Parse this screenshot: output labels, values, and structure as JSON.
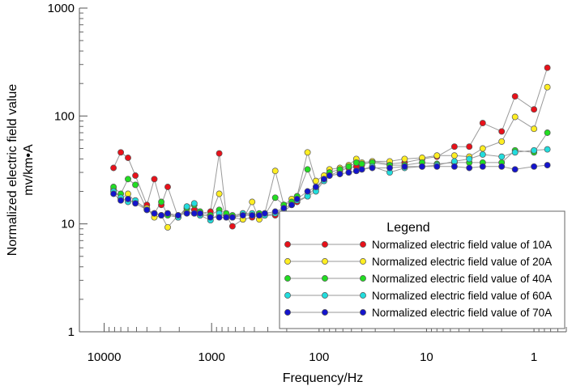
{
  "chart_data": {
    "type": "line",
    "xscale": "log",
    "yscale": "log",
    "x_reversed": true,
    "xlim": [
      17000,
      0.5
    ],
    "ylim": [
      1,
      1000
    ],
    "xlabel": "Frequency/Hz",
    "ylabel_line1": "Normalized electric field value",
    "ylabel_line2": "mv/km•A",
    "x_ticks": [
      {
        "value": 10000,
        "label": "10000"
      },
      {
        "value": 1000,
        "label": "1000"
      },
      {
        "value": 100,
        "label": "100"
      },
      {
        "value": 10,
        "label": "10"
      },
      {
        "value": 1,
        "label": "1"
      }
    ],
    "y_ticks": [
      {
        "value": 1,
        "label": "1"
      },
      {
        "value": 10,
        "label": "10"
      },
      {
        "value": 100,
        "label": "100"
      },
      {
        "value": 1000,
        "label": "1000"
      }
    ],
    "x": [
      8192,
      7000,
      6000,
      5120,
      4000,
      3413,
      2940,
      2560,
      2048,
      1700,
      1450,
      1280,
      1024,
      850,
      730,
      640,
      512,
      420,
      360,
      320,
      256,
      213,
      180,
      160,
      128,
      107,
      90,
      80,
      64,
      53,
      45,
      40,
      32,
      22,
      16,
      11,
      8,
      5.5,
      4,
      3,
      2,
      1.5,
      1,
      0.75
    ],
    "series": [
      {
        "name": "Normalized electric field value of 10A",
        "color": "#e8111a",
        "values": [
          33,
          46,
          41,
          28,
          15,
          26,
          15,
          22,
          11.5,
          14,
          13.5,
          12.5,
          13,
          45,
          12,
          9.5,
          11,
          11.5,
          12,
          12,
          12,
          13,
          15,
          16,
          18,
          22,
          25,
          28,
          31,
          33,
          34,
          35,
          38,
          36,
          37,
          40,
          42,
          52,
          52,
          86,
          72,
          152,
          115,
          280
        ]
      },
      {
        "name": "Normalized electric field value of 20A",
        "color": "#ffee22",
        "values": [
          21,
          17,
          19,
          16,
          14,
          11.5,
          12,
          9.3,
          12,
          13,
          12.5,
          12,
          12,
          19,
          11.5,
          11.5,
          11,
          16,
          11,
          12.5,
          31,
          15,
          17,
          18,
          46,
          25,
          28,
          32,
          33,
          35,
          40,
          37,
          38,
          38,
          40,
          41,
          43,
          43,
          42,
          50,
          58,
          98,
          76,
          185
        ]
      },
      {
        "name": "Normalized electric field value of 40A",
        "color": "#22dd22",
        "values": [
          22,
          19,
          26,
          23,
          13.5,
          12.5,
          16,
          12,
          11.5,
          14,
          15,
          13,
          12,
          13.5,
          12.5,
          12,
          12.5,
          12,
          12.5,
          12,
          17.5,
          15,
          16,
          18,
          32,
          21,
          26,
          30,
          32,
          34,
          37,
          36,
          37,
          35,
          35,
          37,
          36,
          37,
          37,
          37,
          37,
          48,
          46,
          70
        ]
      },
      {
        "name": "Normalized electric field value of 60A",
        "color": "#22dddd",
        "values": [
          20,
          17.5,
          16,
          16.5,
          13.5,
          12.5,
          12,
          12.5,
          11.5,
          14.5,
          15.5,
          12,
          10.8,
          12.5,
          11.5,
          11.5,
          12.5,
          12.5,
          12,
          12,
          12.5,
          13,
          15,
          16.5,
          18,
          20,
          25,
          28,
          29,
          30,
          31,
          32,
          34,
          30,
          33,
          34,
          35,
          38,
          40,
          44,
          42,
          46,
          48,
          49
        ]
      },
      {
        "name": "Normalized electric field value of 70A",
        "color": "#1414cc",
        "values": [
          19,
          16.5,
          17,
          15.5,
          13.5,
          12.5,
          12,
          12.5,
          12,
          12.5,
          12.5,
          12.5,
          11.5,
          11.5,
          11.5,
          11.5,
          12,
          12,
          12,
          12.5,
          13,
          14,
          15,
          17,
          20,
          22,
          26,
          28,
          29,
          30,
          31,
          32,
          33,
          33,
          34,
          34,
          34,
          34,
          33,
          34,
          34,
          32,
          34,
          35
        ]
      }
    ],
    "legend": {
      "title": "Legend",
      "placement": "lower-right"
    },
    "grid": false
  }
}
